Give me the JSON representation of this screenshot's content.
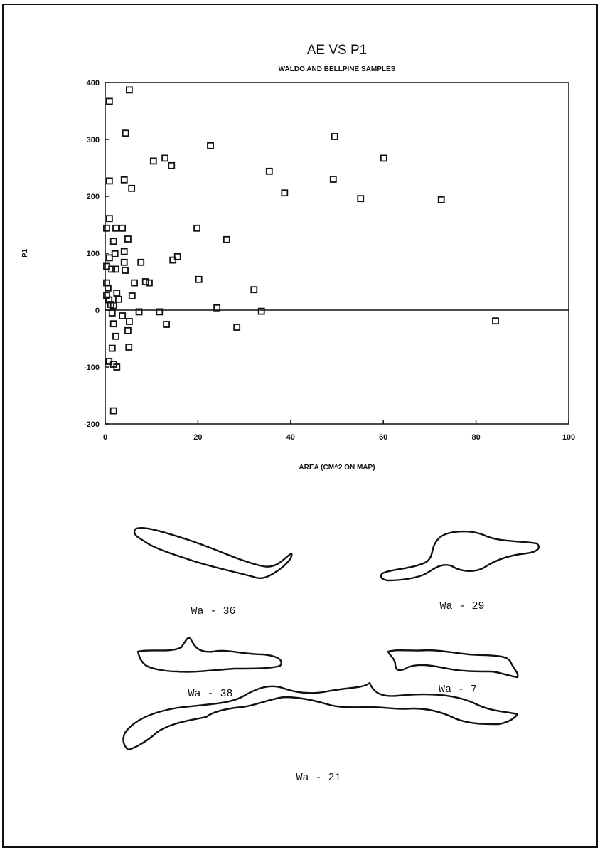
{
  "chart_data": {
    "type": "scatter",
    "title": "AE VS P1",
    "subtitle": "WALDO AND BELLPINE SAMPLES",
    "x_label": "AREA (CM^2 ON MAP)",
    "y_label": "P1",
    "xlim": [
      0,
      100
    ],
    "xticks": [
      0,
      20,
      40,
      60,
      80,
      100
    ],
    "ylim": [
      -200,
      400
    ],
    "yticks": [
      -200,
      -100,
      0,
      100,
      200,
      300,
      400
    ],
    "color": "#111111",
    "x": [
      0.9,
      5.2,
      4.4,
      0.9,
      22.7,
      49.5,
      60.1,
      35.4,
      49.2,
      38.7,
      10.4,
      12.9,
      14.3,
      4.1,
      5.7,
      72.5,
      55.1,
      19.8,
      26.2,
      15.6,
      14.6,
      20.2,
      24.1,
      28.4,
      32.1,
      33.7,
      84.2,
      0.3,
      0.9,
      2.3,
      3.7,
      1.8,
      4.9,
      2.1,
      4.1,
      7.7,
      4.1,
      4.3,
      2.3,
      6.3,
      8.7,
      9.5,
      0.3,
      1.4,
      5.8,
      2.5,
      0.3,
      0.6,
      0.3,
      0.8,
      1.2,
      1.8,
      2.9,
      1.5,
      1.8,
      2.3,
      1.5,
      3.7,
      5.2,
      4.9,
      5.1,
      7.3,
      11.7,
      13.2,
      0.8,
      1.8,
      2.5,
      1.8,
      0.9
    ],
    "values": [
      367,
      387,
      311,
      227,
      289,
      305,
      267,
      244,
      230,
      206,
      262,
      267,
      254,
      229,
      214,
      194,
      196,
      144,
      124,
      94,
      88,
      54,
      4,
      -30,
      36,
      -2,
      -19,
      144,
      161,
      144,
      144,
      121,
      125,
      99,
      103,
      84,
      84,
      70,
      72,
      48,
      50,
      48,
      77,
      72,
      25,
      30,
      48,
      39,
      26,
      18,
      10,
      8,
      19,
      -5,
      -24,
      -46,
      -67,
      -10,
      -20,
      -36,
      -65,
      -3,
      -3,
      -25,
      -90,
      -95,
      -100,
      -177,
      92
    ]
  },
  "shapes": [
    {
      "label": "Wa - 36"
    },
    {
      "label": "Wa - 29"
    },
    {
      "label": "Wa - 38"
    },
    {
      "label": "Wa - 7"
    },
    {
      "label": "Wa - 21"
    }
  ]
}
